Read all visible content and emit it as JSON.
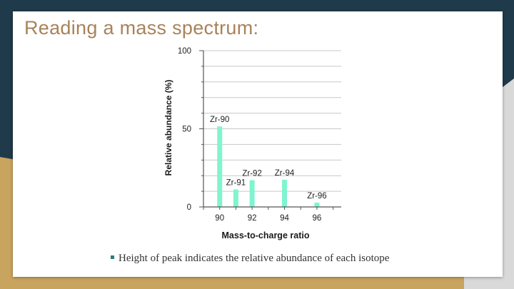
{
  "slide": {
    "title": "Reading a mass spectrum:",
    "bullet_text": "Height of peak indicates the relative abundance of each isotope",
    "accent_color": "#a8825a",
    "bullet_color": "#2e7d7b"
  },
  "chart_data": {
    "type": "bar",
    "title": "",
    "xlabel": "Mass-to-charge ratio",
    "ylabel": "Relative abundance (%)",
    "ylim": [
      0,
      100
    ],
    "yticks": [
      0,
      50,
      100
    ],
    "xlim": [
      89,
      97.5
    ],
    "xticks": [
      90,
      92,
      94,
      96
    ],
    "grid": true,
    "bar_color": "#7ff5cf",
    "bars": [
      {
        "x": 90,
        "value": 51.5,
        "label": "Zr-90"
      },
      {
        "x": 91,
        "value": 11.2,
        "label": "Zr-91"
      },
      {
        "x": 92,
        "value": 17.1,
        "label": "Zr-92"
      },
      {
        "x": 94,
        "value": 17.4,
        "label": "Zr-94"
      },
      {
        "x": 96,
        "value": 2.8,
        "label": "Zr-96"
      }
    ]
  }
}
